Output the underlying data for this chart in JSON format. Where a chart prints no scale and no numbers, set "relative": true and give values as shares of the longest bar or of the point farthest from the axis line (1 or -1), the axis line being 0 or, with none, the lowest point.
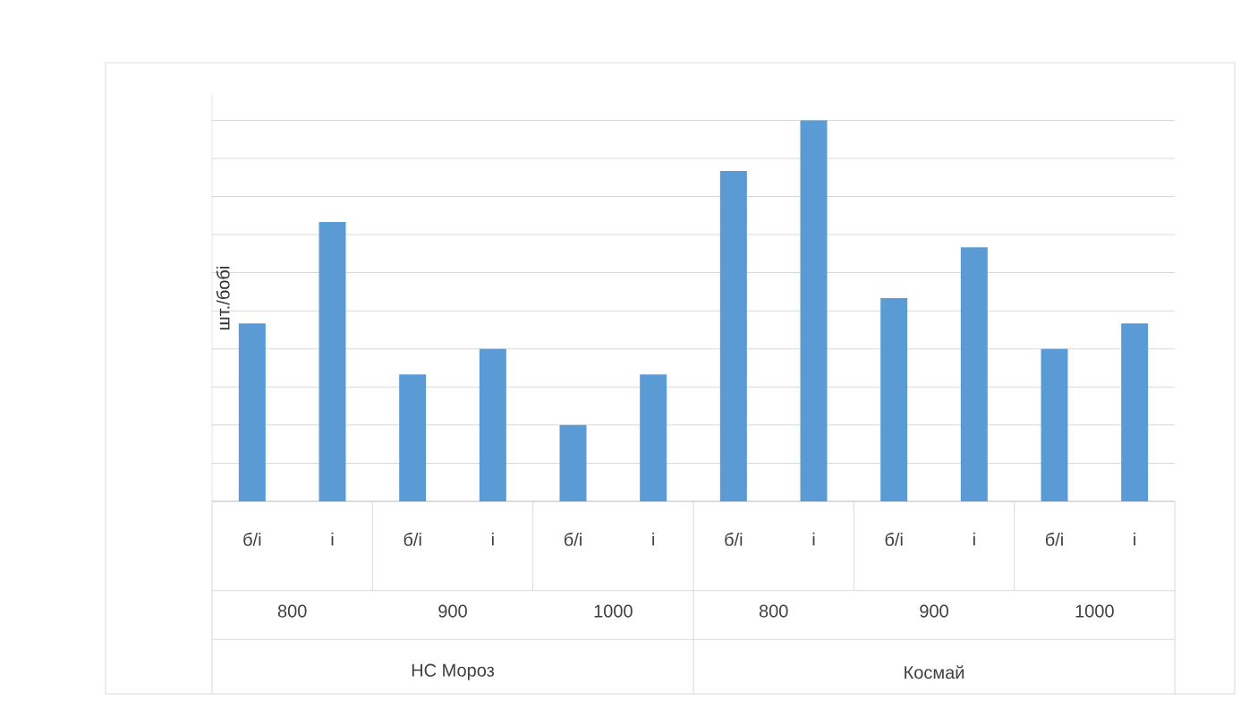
{
  "chart_data": {
    "type": "bar",
    "relative": true,
    "ylabel": "шт./бобі",
    "categories": [
      "б/і",
      "і",
      "б/і",
      "і",
      "б/і",
      "і",
      "б/і",
      "і",
      "б/і",
      "і",
      "б/і",
      "і"
    ],
    "values": [
      0.4667,
      0.7333,
      0.3333,
      0.4,
      0.2,
      0.3333,
      0.8667,
      1,
      0.5333,
      0.6667,
      0.4,
      0.4667
    ],
    "color": "#5b9bd5",
    "grid": "y",
    "annotations": [
      "800",
      "900",
      "1000",
      "800",
      "900",
      "1000",
      "НС Мороз",
      "Космай"
    ]
  }
}
